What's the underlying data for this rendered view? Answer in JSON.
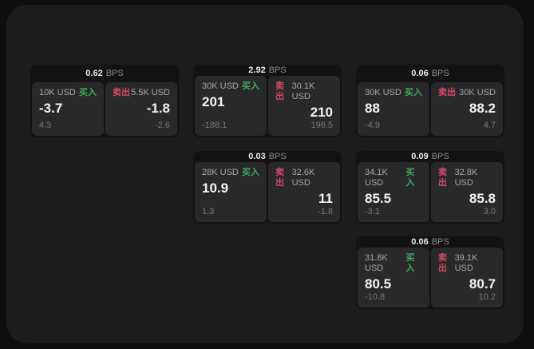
{
  "theme": {
    "outer_bg": "#0e0e0e",
    "window_bg": "#1c1c1e",
    "card_bg": "#131314",
    "panel_bg": "#29292b",
    "buy_color": "#3eac5c",
    "sell_color": "#d64a68"
  },
  "labels": {
    "bps_suffix": "BPS",
    "buy": "买入",
    "sell": "卖出"
  },
  "cards": [
    {
      "bps": "0.62",
      "row": 0,
      "col": 0,
      "buy": {
        "amount": "10K USD",
        "price": "-3.7",
        "delta": "4.3"
      },
      "sell": {
        "amount": "5.5K USD",
        "price": "-1.8",
        "delta": "-2.6"
      }
    },
    {
      "bps": "2.92",
      "row": 0,
      "col": 1,
      "buy": {
        "amount": "30K USD",
        "price": "201",
        "delta": "-188.1"
      },
      "sell": {
        "amount": "30.1K USD",
        "price": "210",
        "delta": "196.5"
      }
    },
    {
      "bps": "0.06",
      "row": 0,
      "col": 2,
      "buy": {
        "amount": "30K USD",
        "price": "88",
        "delta": "-4.9"
      },
      "sell": {
        "amount": "30K USD",
        "price": "88.2",
        "delta": "4.7"
      }
    },
    {
      "bps": "0.03",
      "row": 1,
      "col": 1,
      "buy": {
        "amount": "28K USD",
        "price": "10.9",
        "delta": "1.3"
      },
      "sell": {
        "amount": "32.6K USD",
        "price": "11",
        "delta": "-1.8"
      }
    },
    {
      "bps": "0.09",
      "row": 1,
      "col": 2,
      "buy": {
        "amount": "34.1K USD",
        "price": "85.5",
        "delta": "-3.1"
      },
      "sell": {
        "amount": "32.8K USD",
        "price": "85.8",
        "delta": "3.0"
      }
    },
    {
      "bps": "0.06",
      "row": 2,
      "col": 2,
      "buy": {
        "amount": "31.8K USD",
        "price": "80.5",
        "delta": "-10.8"
      },
      "sell": {
        "amount": "39.1K USD",
        "price": "80.7",
        "delta": "10.2"
      }
    }
  ]
}
